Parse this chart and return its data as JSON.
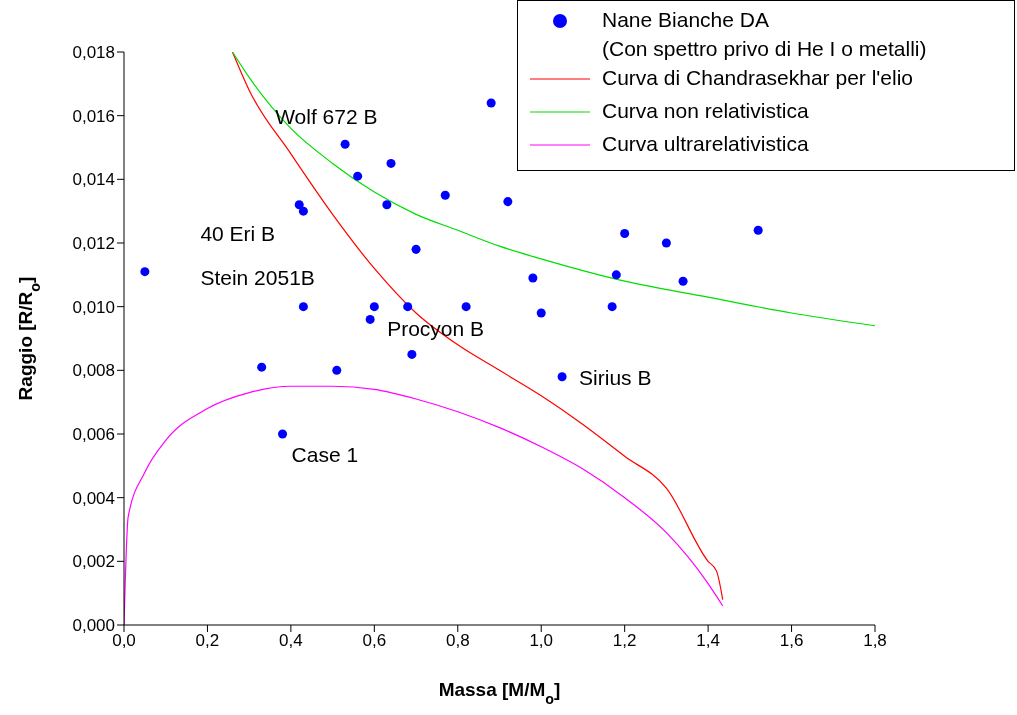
{
  "chart_data": {
    "type": "scatter",
    "xlabel": "Massa [M/M$_{o}$]",
    "ylabel": "Raggio [R/R$_{o}$]",
    "xlim": [
      0,
      1.8
    ],
    "xticks": [
      {
        "value": 0,
        "label": "0,0"
      },
      {
        "value": 0.2,
        "label": "0,2"
      },
      {
        "value": 0.4,
        "label": "0,4"
      },
      {
        "value": 0.6,
        "label": "0,6"
      },
      {
        "value": 0.8,
        "label": "0,8"
      },
      {
        "value": 1,
        "label": "1,0"
      },
      {
        "value": 1.2,
        "label": "1,2"
      },
      {
        "value": 1.4,
        "label": "1,4"
      },
      {
        "value": 1.6,
        "label": "1,6"
      },
      {
        "value": 1.8,
        "label": "1,8"
      }
    ],
    "ylim": [
      0,
      0.018
    ],
    "yticks": [
      {
        "value": 0,
        "label": "0,000"
      },
      {
        "value": 0.002,
        "label": "0,002"
      },
      {
        "value": 0.004,
        "label": "0,004"
      },
      {
        "value": 0.006,
        "label": "0,006"
      },
      {
        "value": 0.008,
        "label": "0,008"
      },
      {
        "value": 0.01,
        "label": "0,010"
      },
      {
        "value": 0.012,
        "label": "0,012"
      },
      {
        "value": 0.014,
        "label": "0,014"
      },
      {
        "value": 0.016,
        "label": "0,016"
      },
      {
        "value": 0.018,
        "label": "0,018"
      }
    ],
    "grid": false,
    "legend": "top right",
    "series": [
      {
        "name": "Nane Bianche DA\n(Con spettro privo di He I o metalli)",
        "marker": "circle",
        "color": "#0000ff",
        "x": [
          0.05,
          0.33,
          0.38,
          0.42,
          0.43,
          0.43,
          0.51,
          0.53,
          0.56,
          0.6,
          0.59,
          0.64,
          0.63,
          0.68,
          0.7,
          0.69,
          0.77,
          0.82,
          0.88,
          0.92,
          0.98,
          1.0,
          1.05,
          1.17,
          1.18,
          1.2,
          1.3,
          1.34,
          1.52
        ],
        "values": [
          0.0111,
          0.0081,
          0.006,
          0.0132,
          0.013,
          0.01,
          0.008,
          0.0151,
          0.0141,
          0.01,
          0.0096,
          0.0145,
          0.0132,
          0.01,
          0.0118,
          0.0085,
          0.0135,
          0.01,
          0.0164,
          0.0133,
          0.0109,
          0.0098,
          0.0078,
          0.01,
          0.011,
          0.0123,
          0.012,
          0.0108,
          0.0124
        ]
      },
      {
        "name": "Curva di Chandrasekhar per l'elio",
        "type": "line",
        "marker": "none",
        "color": "#ff0000",
        "x": [
          0.26,
          0.3,
          0.4,
          0.5,
          0.6,
          0.7,
          0.8,
          0.9,
          1.0,
          1.1,
          1.2,
          1.3,
          1.4,
          1.42,
          1.435
        ],
        "values": [
          0.018,
          0.0168,
          0.0148,
          0.0129,
          0.0112,
          0.0098,
          0.0088,
          0.008,
          0.0072,
          0.0063,
          0.0053,
          0.0043,
          0.002,
          0.0017,
          0.0008
        ]
      },
      {
        "name": "Curva non relativistica",
        "type": "line",
        "marker": "none",
        "color": "#00dd00",
        "x": [
          0.26,
          0.3,
          0.4,
          0.5,
          0.6,
          0.7,
          0.8,
          0.9,
          1.0,
          1.2,
          1.4,
          1.6,
          1.8
        ],
        "values": [
          0.018,
          0.0172,
          0.0156,
          0.0145,
          0.0136,
          0.0129,
          0.0124,
          0.0119,
          0.0115,
          0.0108,
          0.0103,
          0.0098,
          0.0094
        ]
      },
      {
        "name": "Curva ultrarelativistica",
        "type": "line",
        "marker": "none",
        "color": "#ff00ff",
        "x": [
          0,
          0.01,
          0.05,
          0.1,
          0.2,
          0.3,
          0.4,
          0.5,
          0.6,
          0.7,
          0.8,
          0.9,
          1.0,
          1.1,
          1.2,
          1.3,
          1.4,
          1.435
        ],
        "values": [
          0,
          0.0034,
          0.0048,
          0.0058,
          0.0068,
          0.0073,
          0.0075,
          0.0075,
          0.0074,
          0.0071,
          0.0067,
          0.0062,
          0.0056,
          0.0049,
          0.004,
          0.0029,
          0.0013,
          0.0006
        ]
      }
    ],
    "annotations": [
      {
        "text": "Wolf 672 B",
        "x": 0.53,
        "y": 0.0151
      },
      {
        "text": "40 Eri B",
        "x": 0.43,
        "y": 0.013
      },
      {
        "text": "Stein 2051B",
        "x": 0.43,
        "y": 0.01
      },
      {
        "text": "Procyon B",
        "x": 0.59,
        "y": 0.0096
      },
      {
        "text": "Sirius B",
        "x": 1.05,
        "y": 0.0078
      },
      {
        "text": "Case 1",
        "x": 0.38,
        "y": 0.006
      }
    ]
  }
}
